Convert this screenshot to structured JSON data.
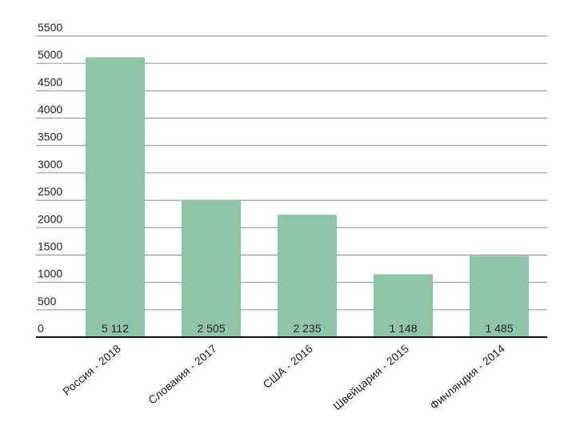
{
  "chart_data": {
    "type": "bar",
    "categories": [
      "Россия - 2018",
      "Словакия - 2017",
      "США - 2016",
      "Швейцария - 2015",
      "Финляндия - 2014"
    ],
    "values": [
      5112,
      2505,
      2235,
      1148,
      1485
    ],
    "value_labels": [
      "5 112",
      "2 505",
      "2 235",
      "1 148",
      "1 485"
    ],
    "color": "#8fc4a7",
    "ylim": [
      0,
      5500
    ],
    "yticks": [
      0,
      500,
      1000,
      1500,
      2000,
      2500,
      3000,
      3500,
      4000,
      4500,
      5000,
      5500
    ],
    "grid": true
  }
}
